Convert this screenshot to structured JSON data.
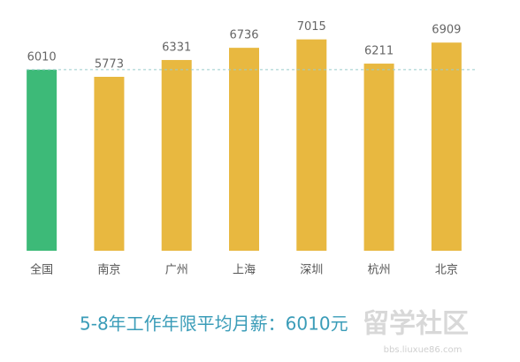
{
  "chart_data": {
    "type": "bar",
    "title": "5-8年工作年限平均月薪：6010元",
    "categories": [
      "全国",
      "南京",
      "广州",
      "上海",
      "深圳",
      "杭州",
      "北京"
    ],
    "values": [
      6010,
      5773,
      6331,
      6736,
      7015,
      6211,
      6909
    ],
    "colors": [
      "#3dba78",
      "#e8b840",
      "#e8b840",
      "#e8b840",
      "#e8b840",
      "#e8b840",
      "#e8b840"
    ],
    "reference_line": 6010,
    "ylim": [
      0,
      8000
    ],
    "grid": false,
    "watermark": "留学社区",
    "watermark_url": "bbs.liuxue86.com"
  }
}
